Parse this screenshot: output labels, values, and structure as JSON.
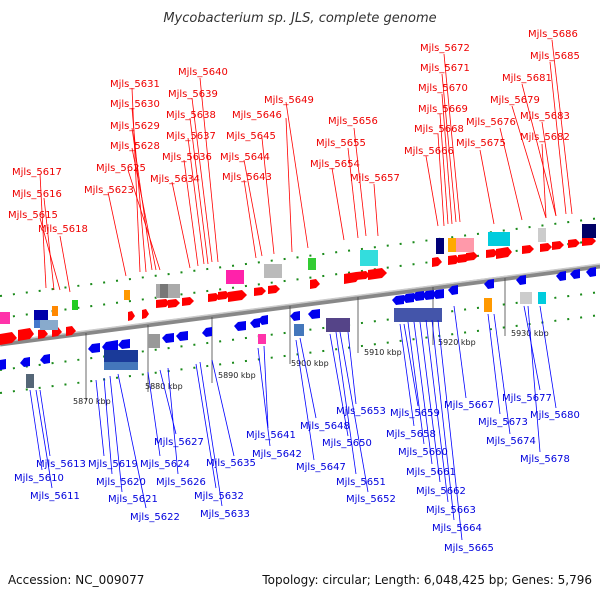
{
  "title": "Mycobacterium sp. JLS, complete genome",
  "footer": {
    "accession": "Accession: NC_009077",
    "info": "Topology: circular; Length: 6,048,425 bp; Genes: 5,796"
  },
  "colors": {
    "forward": "#ff0000",
    "reverse": "#0000ff",
    "backbone": "#999999",
    "tick": "#22aa22"
  },
  "ticks": [
    "5870 kbp",
    "5880 kbp",
    "5890 kbp",
    "5900 kbp",
    "5910 kbp",
    "5920 kbp",
    "5930 kbp"
  ],
  "top_labels": [
    "Mjls_5617",
    "Mjls_5616",
    "Mjls_5615",
    "Mjls_5618",
    "Mjls_5631",
    "Mjls_5630",
    "Mjls_5629",
    "Mjls_5628",
    "Mjls_5625",
    "Mjls_5623",
    "Mjls_5640",
    "Mjls_5639",
    "Mjls_5638",
    "Mjls_5637",
    "Mjls_5636",
    "Mjls_5634",
    "Mjls_5646",
    "Mjls_5645",
    "Mjls_5644",
    "Mjls_5643",
    "Mjls_5649",
    "Mjls_5656",
    "Mjls_5655",
    "Mjls_5654",
    "Mjls_5657",
    "Mjls_5672",
    "Mjls_5671",
    "Mjls_5670",
    "Mjls_5669",
    "Mjls_5668",
    "Mjls_5666",
    "Mjls_5686",
    "Mjls_5685",
    "Mjls_5681",
    "Mjls_5679",
    "Mjls_5676",
    "Mjls_5675",
    "Mjls_5683",
    "Mjls_5682"
  ],
  "bottom_labels": [
    "Mjls_5613",
    "Mjls_5610",
    "Mjls_5611",
    "Mjls_5619",
    "Mjls_5620",
    "Mjls_5621",
    "Mjls_5622",
    "Mjls_5627",
    "Mjls_5624",
    "Mjls_5626",
    "Mjls_5632",
    "Mjls_5633",
    "Mjls_5635",
    "Mjls_5641",
    "Mjls_5642",
    "Mjls_5648",
    "Mjls_5647",
    "Mjls_5650",
    "Mjls_5651",
    "Mjls_5652",
    "Mjls_5653",
    "Mjls_5659",
    "Mjls_5658",
    "Mjls_5660",
    "Mjls_5661",
    "Mjls_5662",
    "Mjls_5663",
    "Mjls_5664",
    "Mjls_5665",
    "Mjls_5667",
    "Mjls_5673",
    "Mjls_5674",
    "Mjls_5677",
    "Mjls_5680",
    "Mjls_5678"
  ]
}
